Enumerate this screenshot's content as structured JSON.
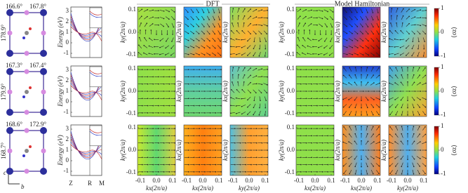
{
  "structures": [
    {
      "angles": [
        "166.6°",
        "167.8°",
        "178.9°"
      ]
    },
    {
      "angles": [
        "167.3°",
        "167.4°",
        "179.9°"
      ]
    },
    {
      "angles": [
        "168.6°",
        "172.9°",
        "168.7°"
      ]
    }
  ],
  "axis_labels": {
    "c": "c",
    "b": "b"
  },
  "bands": {
    "ylabel": "Energy (eV)",
    "yticks": [
      3,
      2,
      1,
      0,
      -1
    ],
    "xticks": [
      "Z",
      "R",
      "M"
    ]
  },
  "headings": {
    "dft": "DFT",
    "model": "Model Hamiltonian"
  },
  "spin_panels": {
    "ticks": [
      {
        "value": -0.1,
        "label": "-0.1"
      },
      {
        "value": 0,
        "label": "0.0"
      },
      {
        "value": 0.1,
        "label": "0.1"
      }
    ],
    "ylabels": [
      "ky(2π/a)",
      "kx(2π/a)",
      "kx(2π/a)",
      "ky(2π/a)",
      "kx(2π/a)",
      "kx(2π/a)"
    ],
    "xlabels": [
      "kx(2π/a)",
      "kx(2π/a)",
      "ky(2π/a)",
      "kx(2π/a)",
      "kx(2π/a)",
      "ky(2π/a)"
    ]
  },
  "colorbar": {
    "ticks": [
      1,
      0,
      -1
    ],
    "label": "⟨σz⟩"
  }
}
